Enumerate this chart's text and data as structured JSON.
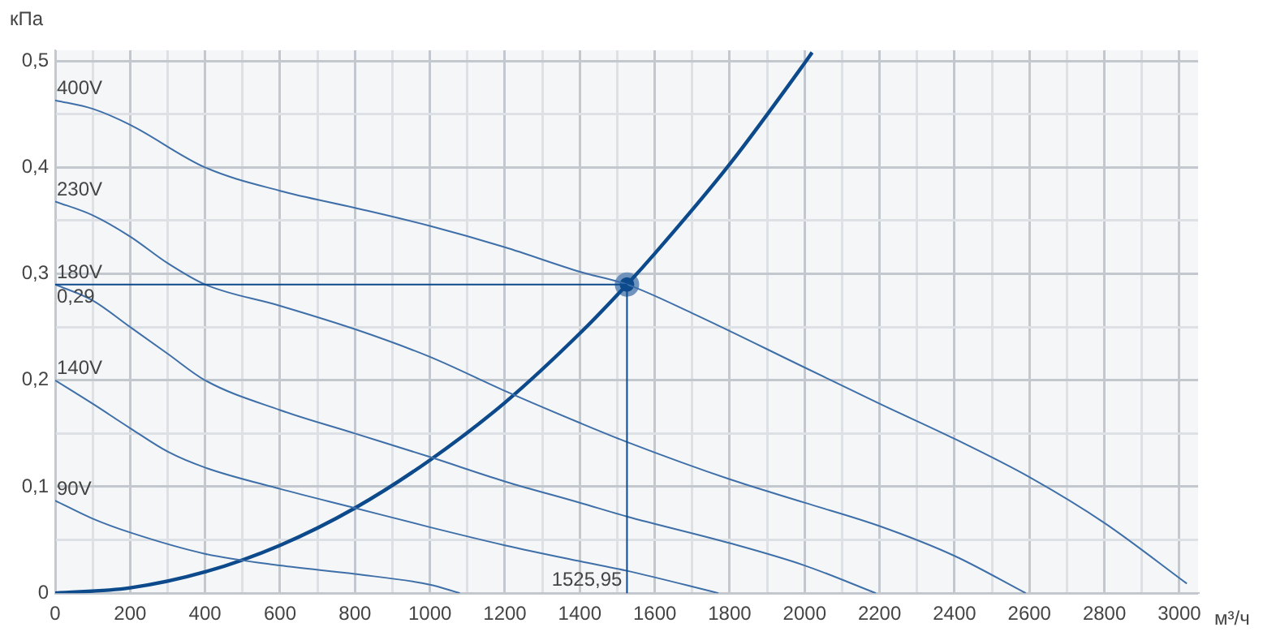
{
  "chart_data": {
    "type": "line",
    "xlabel": "м³/ч",
    "ylabel": "кПа",
    "xlim": [
      0,
      3050
    ],
    "ylim": [
      0,
      0.51
    ],
    "xticks": [
      0,
      {
        "value": 100,
        "label": null
      },
      200,
      {
        "value": 300,
        "label": null
      },
      400,
      {
        "value": 500,
        "label": null
      },
      600,
      {
        "value": 700,
        "label": null
      },
      800,
      {
        "value": 900,
        "label": null
      },
      1000,
      {
        "value": 1100,
        "label": null
      },
      1200,
      {
        "value": 1300,
        "label": null
      },
      1400,
      {
        "value": 1500,
        "label": null
      },
      1600,
      {
        "value": 1700,
        "label": null
      },
      1800,
      {
        "value": 1900,
        "label": null
      },
      2000,
      {
        "value": 2100,
        "label": null
      },
      2200,
      {
        "value": 2300,
        "label": null
      },
      2400,
      {
        "value": 2500,
        "label": null
      },
      2600,
      {
        "value": 2700,
        "label": null
      },
      2800,
      {
        "value": 2900,
        "label": null
      },
      3000
    ],
    "yticks": [
      0,
      {
        "value": 0.05,
        "label": null
      },
      {
        "value": 0.1,
        "label": "0,1"
      },
      {
        "value": 0.15,
        "label": null
      },
      {
        "value": 0.2,
        "label": "0,2"
      },
      {
        "value": 0.25,
        "label": null
      },
      {
        "value": 0.3,
        "label": "0,3"
      },
      {
        "value": 0.35,
        "label": null
      },
      {
        "value": 0.4,
        "label": "0,4"
      },
      {
        "value": 0.45,
        "label": null
      },
      {
        "value": 0.5,
        "label": "0,5"
      }
    ],
    "grid": true,
    "legend": false,
    "series": [
      {
        "name": "400V",
        "color": "#3f6fa8",
        "x": [
          0,
          100,
          200,
          400,
          600,
          800,
          1000,
          1200,
          1400,
          1526,
          1700,
          2000,
          2200,
          2400,
          2600,
          2800,
          3020
        ],
        "values": [
          0.463,
          0.455,
          0.44,
          0.4,
          0.378,
          0.362,
          0.345,
          0.325,
          0.302,
          0.29,
          0.263,
          0.212,
          0.178,
          0.145,
          0.109,
          0.066,
          0.009
        ]
      },
      {
        "name": "230V",
        "color": "#3f6fa8",
        "x": [
          0,
          100,
          200,
          300,
          400,
          600,
          800,
          1000,
          1200,
          1400,
          1526,
          1800,
          2000,
          2200,
          2400,
          2590
        ],
        "values": [
          0.368,
          0.355,
          0.335,
          0.31,
          0.29,
          0.27,
          0.248,
          0.222,
          0.19,
          0.16,
          0.142,
          0.107,
          0.085,
          0.063,
          0.035,
          0
        ]
      },
      {
        "name": "180V",
        "color": "#3f6fa8",
        "x": [
          0,
          100,
          200,
          300,
          400,
          600,
          800,
          1000,
          1200,
          1400,
          1526,
          1800,
          2000,
          2190
        ],
        "values": [
          0.29,
          0.275,
          0.25,
          0.225,
          0.2,
          0.172,
          0.15,
          0.128,
          0.105,
          0.085,
          0.072,
          0.047,
          0.026,
          0
        ]
      },
      {
        "name": "140V",
        "color": "#3f6fa8",
        "x": [
          0,
          100,
          200,
          300,
          400,
          600,
          800,
          1000,
          1200,
          1400,
          1526,
          1770
        ],
        "values": [
          0.2,
          0.178,
          0.155,
          0.133,
          0.118,
          0.098,
          0.08,
          0.062,
          0.045,
          0.03,
          0.021,
          0
        ]
      },
      {
        "name": "90V",
        "color": "#3f6fa8",
        "x": [
          0,
          100,
          200,
          400,
          600,
          800,
          1000,
          1080
        ],
        "values": [
          0.087,
          0.07,
          0.057,
          0.037,
          0.026,
          0.018,
          0.008,
          0
        ]
      },
      {
        "color": "#0d4a8c",
        "x": [
          0,
          200,
          400,
          600,
          800,
          1000,
          1200,
          1400,
          1525.95,
          1600,
          1800,
          2000,
          2020
        ],
        "values": [
          0,
          0.005,
          0.02,
          0.045,
          0.08,
          0.125,
          0.179,
          0.244,
          0.29,
          0.319,
          0.403,
          0.498,
          0.508
        ]
      },
      {
        "type": "scatter",
        "marker": "circle",
        "color": "#0d4a8c",
        "x": [
          1525.95
        ],
        "values": [
          0.29
        ]
      }
    ],
    "annotations": [
      {
        "text": "0,29",
        "y": 0.29
      },
      {
        "text": "1525,95",
        "x": 1525.95
      }
    ]
  }
}
